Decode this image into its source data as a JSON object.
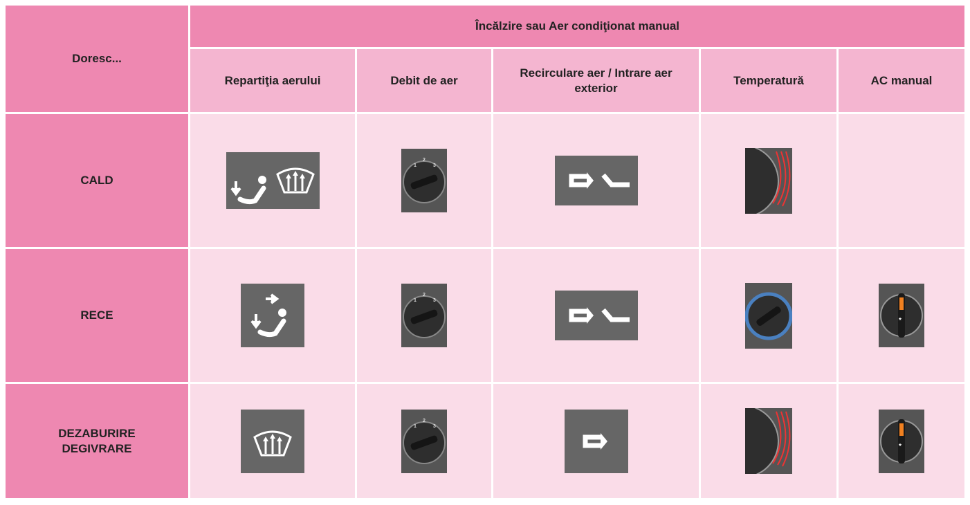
{
  "header": {
    "corner": "Doresc...",
    "group": "Încălzire sau Aer condiţionat manual",
    "columns": [
      "Repartiţia aerului",
      "Debit de aer",
      "Recirculare aer / Intrare aer exterior",
      "Temperatură",
      "AC manual"
    ]
  },
  "rows": [
    {
      "label": [
        "CALD"
      ]
    },
    {
      "label": [
        "RECE"
      ]
    },
    {
      "label": [
        "DEZABURIRE",
        "DEGIVRARE"
      ]
    }
  ]
}
